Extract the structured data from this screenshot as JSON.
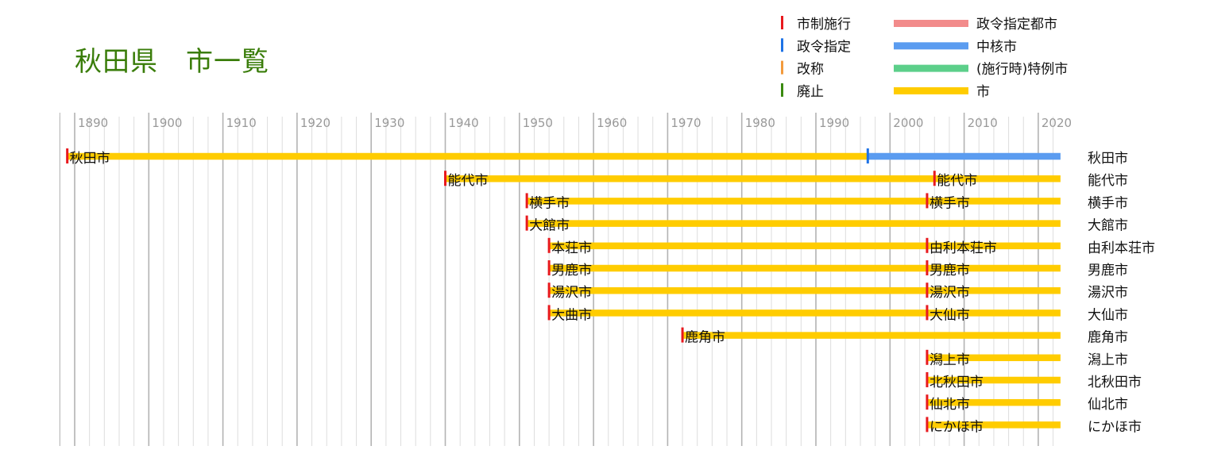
{
  "title": "秋田県　市一覧",
  "legend": {
    "events": [
      {
        "label": "市制施行",
        "color": "#e8191e"
      },
      {
        "label": "政令指定",
        "color": "#1e73e6"
      },
      {
        "label": "改称",
        "color": "#f39a3c"
      },
      {
        "label": "廃止",
        "color": "#3a8a10"
      }
    ],
    "statuses": [
      {
        "label": "政令指定都市",
        "color": "#f28b8b"
      },
      {
        "label": "中核市",
        "color": "#5b9cf0"
      },
      {
        "label": "(施行時)特例市",
        "color": "#5ccf8a"
      },
      {
        "label": "市",
        "color": "#ffcc00"
      }
    ]
  },
  "chart_data": {
    "type": "timeline",
    "title": "秋田県　市一覧",
    "x_axis": {
      "min": 1888,
      "max": 2023,
      "ticks": [
        1890,
        1900,
        1910,
        1920,
        1930,
        1940,
        1950,
        1960,
        1970,
        1980,
        1990,
        2000,
        2010,
        2020
      ],
      "minor_step": 2
    },
    "rows": [
      {
        "current_name": "秋田市",
        "segments": [
          {
            "status": "市",
            "start": 1889,
            "end": 1997
          },
          {
            "status": "中核市",
            "start": 1997,
            "end": 2023
          }
        ],
        "events": [
          {
            "type": "市制施行",
            "year": 1889,
            "label": "秋田市"
          },
          {
            "type": "政令指定",
            "year": 1997
          }
        ]
      },
      {
        "current_name": "能代市",
        "segments": [
          {
            "status": "市",
            "start": 1940,
            "end": 2023
          }
        ],
        "events": [
          {
            "type": "市制施行",
            "year": 1940,
            "label": "能代市"
          },
          {
            "type": "市制施行",
            "year": 2006,
            "label": "能代市"
          }
        ]
      },
      {
        "current_name": "横手市",
        "segments": [
          {
            "status": "市",
            "start": 1951,
            "end": 2023
          }
        ],
        "events": [
          {
            "type": "市制施行",
            "year": 1951,
            "label": "横手市"
          },
          {
            "type": "市制施行",
            "year": 2005,
            "label": "横手市"
          }
        ]
      },
      {
        "current_name": "大館市",
        "segments": [
          {
            "status": "市",
            "start": 1951,
            "end": 2023
          }
        ],
        "events": [
          {
            "type": "市制施行",
            "year": 1951,
            "label": "大館市"
          }
        ]
      },
      {
        "current_name": "由利本荘市",
        "segments": [
          {
            "status": "市",
            "start": 1954,
            "end": 2023
          }
        ],
        "events": [
          {
            "type": "市制施行",
            "year": 1954,
            "label": "本荘市"
          },
          {
            "type": "市制施行",
            "year": 2005,
            "label": "由利本荘市"
          }
        ]
      },
      {
        "current_name": "男鹿市",
        "segments": [
          {
            "status": "市",
            "start": 1954,
            "end": 2023
          }
        ],
        "events": [
          {
            "type": "市制施行",
            "year": 1954,
            "label": "男鹿市"
          },
          {
            "type": "市制施行",
            "year": 2005,
            "label": "男鹿市"
          }
        ]
      },
      {
        "current_name": "湯沢市",
        "segments": [
          {
            "status": "市",
            "start": 1954,
            "end": 2023
          }
        ],
        "events": [
          {
            "type": "市制施行",
            "year": 1954,
            "label": "湯沢市"
          },
          {
            "type": "市制施行",
            "year": 2005,
            "label": "湯沢市"
          }
        ]
      },
      {
        "current_name": "大仙市",
        "segments": [
          {
            "status": "市",
            "start": 1954,
            "end": 2023
          }
        ],
        "events": [
          {
            "type": "市制施行",
            "year": 1954,
            "label": "大曲市"
          },
          {
            "type": "市制施行",
            "year": 2005,
            "label": "大仙市"
          }
        ]
      },
      {
        "current_name": "鹿角市",
        "segments": [
          {
            "status": "市",
            "start": 1972,
            "end": 2023
          }
        ],
        "events": [
          {
            "type": "市制施行",
            "year": 1972,
            "label": "鹿角市"
          }
        ]
      },
      {
        "current_name": "潟上市",
        "segments": [
          {
            "status": "市",
            "start": 2005,
            "end": 2023
          }
        ],
        "events": [
          {
            "type": "市制施行",
            "year": 2005,
            "label": "潟上市"
          }
        ]
      },
      {
        "current_name": "北秋田市",
        "segments": [
          {
            "status": "市",
            "start": 2005,
            "end": 2023
          }
        ],
        "events": [
          {
            "type": "市制施行",
            "year": 2005,
            "label": "北秋田市"
          }
        ]
      },
      {
        "current_name": "仙北市",
        "segments": [
          {
            "status": "市",
            "start": 2005,
            "end": 2023
          }
        ],
        "events": [
          {
            "type": "市制施行",
            "year": 2005,
            "label": "仙北市"
          }
        ]
      },
      {
        "current_name": "にかほ市",
        "segments": [
          {
            "status": "市",
            "start": 2005,
            "end": 2023
          }
        ],
        "events": [
          {
            "type": "市制施行",
            "year": 2005,
            "label": "にかほ市"
          }
        ]
      }
    ]
  }
}
